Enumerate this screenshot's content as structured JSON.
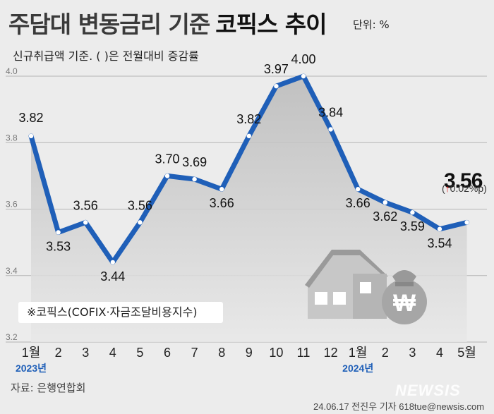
{
  "title": {
    "main": "주담대 변동금리 기준",
    "strong": "코픽스 추이",
    "unit": "단위: %"
  },
  "subtitle": "신규취급액 기준. ( )은 전월대비 증감률",
  "note": "※코픽스(COFIX·자금조달비용지수)",
  "source": "자료: 은행연합회",
  "credit": "24.06.17 전진우 기자 618tue@newsis.com",
  "watermark": "NEWSIS",
  "last_value": "3.56",
  "last_change": {
    "open": "(",
    "arrow": "↑",
    "value": "0.02%p",
    "close": ")"
  },
  "year_labels": [
    "2023년",
    "2024년"
  ],
  "colors": {
    "line": "#1f5fb8",
    "year": "#1f5fb8",
    "up": "#dd1111"
  },
  "icons": [
    "house-icon",
    "money-bag-icon"
  ],
  "chart_data": {
    "type": "line",
    "categories": [
      "1월",
      "2",
      "3",
      "4",
      "5",
      "6",
      "7",
      "8",
      "9",
      "10",
      "11",
      "12",
      "1월",
      "2",
      "3",
      "4",
      "5월"
    ],
    "values": [
      3.82,
      3.53,
      3.56,
      3.44,
      3.56,
      3.7,
      3.69,
      3.66,
      3.82,
      3.97,
      4.0,
      3.84,
      3.66,
      3.62,
      3.59,
      3.54,
      3.56
    ],
    "value_labels": [
      "3.82",
      "3.53",
      "3.56",
      "3.44",
      "3.56",
      "3.70",
      "3.69",
      "3.66",
      "3.82",
      "3.97",
      "4.00",
      "3.84",
      "3.66",
      "3.62",
      "3.59",
      "3.54",
      ""
    ],
    "ylim": [
      3.2,
      4.0
    ],
    "yticks": [
      "4.0",
      "3.8",
      "3.6",
      "3.4",
      "3.2"
    ],
    "grid": true
  }
}
